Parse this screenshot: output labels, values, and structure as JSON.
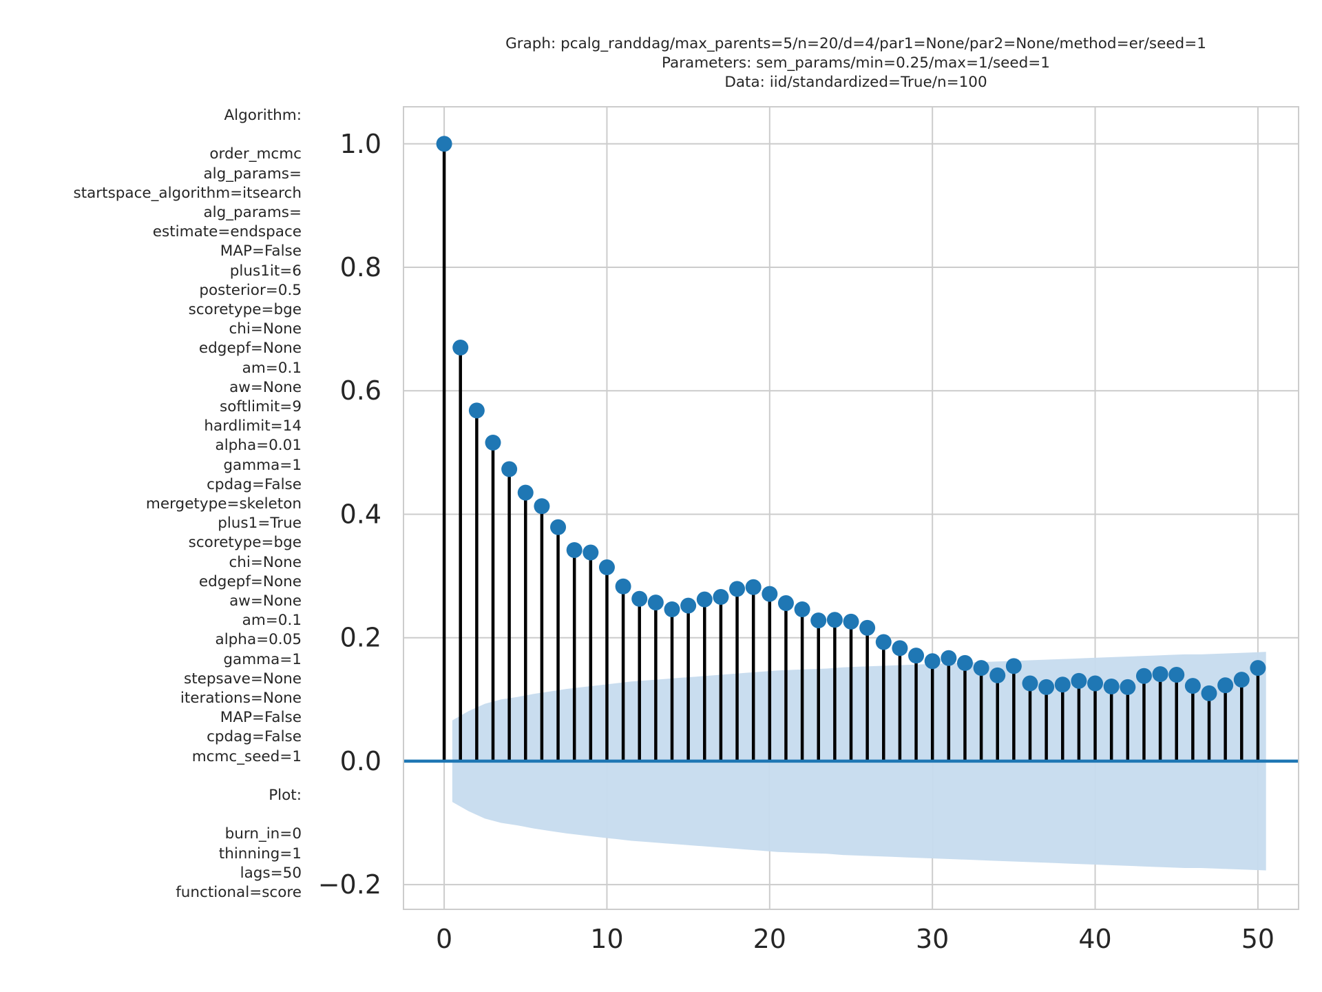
{
  "chart_data": {
    "type": "bar",
    "subtype": "autocorrelation stem plot",
    "title_lines": [
      "Graph: pcalg_randdag/max_parents=5/n=20/d=4/par1=None/par2=None/method=er/seed=1",
      "Parameters: sem_params/min=0.25/max=1/seed=1",
      "Data: iid/standardized=True/n=100"
    ],
    "xlabel": "",
    "ylabel": "",
    "xlim": [
      -2.5,
      52.5
    ],
    "ylim": [
      -0.24,
      1.06
    ],
    "grid": true,
    "x_ticks": [
      0,
      10,
      20,
      30,
      40,
      50
    ],
    "x_tick_labels": [
      "0",
      "10",
      "20",
      "30",
      "40",
      "50"
    ],
    "y_ticks": [
      -0.2,
      0.0,
      0.2,
      0.4,
      0.6,
      0.8,
      1.0
    ],
    "y_tick_labels": [
      "−0.2",
      "0.0",
      "0.2",
      "0.4",
      "0.6",
      "0.8",
      "1.0"
    ],
    "x": [
      0,
      1,
      2,
      3,
      4,
      5,
      6,
      7,
      8,
      9,
      10,
      11,
      12,
      13,
      14,
      15,
      16,
      17,
      18,
      19,
      20,
      21,
      22,
      23,
      24,
      25,
      26,
      27,
      28,
      29,
      30,
      31,
      32,
      33,
      34,
      35,
      36,
      37,
      38,
      39,
      40,
      41,
      42,
      43,
      44,
      45,
      46,
      47,
      48,
      49,
      50
    ],
    "values": [
      1.0,
      0.67,
      0.568,
      0.516,
      0.473,
      0.435,
      0.413,
      0.379,
      0.342,
      0.338,
      0.314,
      0.283,
      0.263,
      0.257,
      0.246,
      0.252,
      0.262,
      0.266,
      0.279,
      0.282,
      0.271,
      0.256,
      0.246,
      0.228,
      0.229,
      0.226,
      0.216,
      0.193,
      0.183,
      0.171,
      0.162,
      0.167,
      0.159,
      0.151,
      0.139,
      0.154,
      0.126,
      0.12,
      0.124,
      0.13,
      0.126,
      0.121,
      0.12,
      0.138,
      0.141,
      0.14,
      0.122,
      0.11,
      0.123,
      0.132,
      0.151
    ],
    "confidence_band": {
      "x_start": 0.5,
      "x_end": 50.5,
      "upper": [
        0.066,
        0.081,
        0.093,
        0.1,
        0.104,
        0.109,
        0.113,
        0.117,
        0.12,
        0.123,
        0.126,
        0.129,
        0.131,
        0.133,
        0.135,
        0.137,
        0.139,
        0.141,
        0.143,
        0.145,
        0.147,
        0.148,
        0.149,
        0.15,
        0.152,
        0.153,
        0.154,
        0.155,
        0.156,
        0.157,
        0.158,
        0.159,
        0.16,
        0.161,
        0.162,
        0.163,
        0.164,
        0.165,
        0.166,
        0.167,
        0.168,
        0.169,
        0.17,
        0.171,
        0.172,
        0.173,
        0.173,
        0.174,
        0.175,
        0.176,
        0.177
      ]
    },
    "colors": {
      "marker": "#1f77b4",
      "stem": "#000000",
      "baseline": "#1f77b4",
      "band": "#c6dbee",
      "grid": "#cccccc"
    }
  },
  "side_panel": {
    "algorithm_heading": "Algorithm:",
    "algorithm_lines": [
      "order_mcmc",
      "alg_params=",
      "startspace_algorithm=itsearch",
      "alg_params=",
      "estimate=endspace",
      "MAP=False",
      "plus1it=6",
      "posterior=0.5",
      "scoretype=bge",
      "chi=None",
      "edgepf=None",
      "am=0.1",
      "aw=None",
      "softlimit=9",
      "hardlimit=14",
      "alpha=0.01",
      "gamma=1",
      "cpdag=False",
      "mergetype=skeleton",
      "plus1=True",
      "scoretype=bge",
      "chi=None",
      "edgepf=None",
      "aw=None",
      "am=0.1",
      "alpha=0.05",
      "gamma=1",
      "stepsave=None",
      "iterations=None",
      "MAP=False",
      "cpdag=False",
      "mcmc_seed=1"
    ],
    "plot_heading": "Plot:",
    "plot_lines": [
      "burn_in=0",
      "thinning=1",
      "lags=50",
      "functional=score"
    ]
  }
}
